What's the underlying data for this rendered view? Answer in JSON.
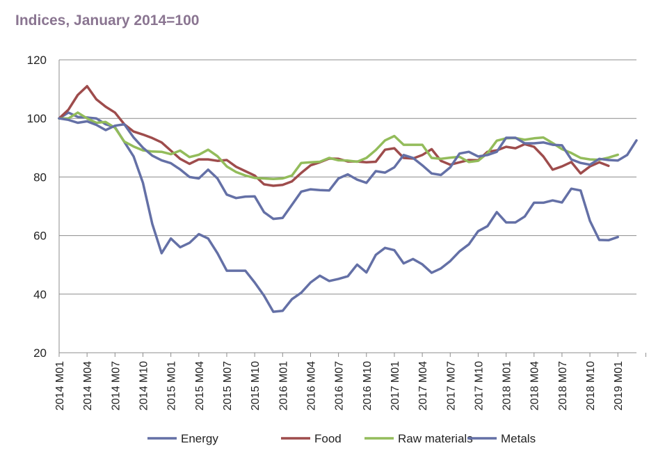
{
  "chart_data": {
    "type": "line",
    "subtitle": "Indices, January 2014=100",
    "xlabel": "",
    "ylabel": "",
    "ylim": [
      20,
      120
    ],
    "yticks": [
      20,
      40,
      60,
      80,
      100,
      120
    ],
    "grid": "horizontal",
    "legend_position": "bottom",
    "x_tick_labels": [
      "2014 M01",
      "2014 M04",
      "2014 M07",
      "2014 M10",
      "2015 M01",
      "2015 M04",
      "2015 M07",
      "2015 M10",
      "2016 M01",
      "2016 M04",
      "2016 M07",
      "2016 M10",
      "2017 M01",
      "2017 M04",
      "2017 M07",
      "2017 M10",
      "2018 M01",
      "2018 M04",
      "2018 M07",
      "2018 M10",
      "2019 M01"
    ],
    "x_start": "2014 M01",
    "frequency": "monthly",
    "series": [
      {
        "name": "Energy",
        "color": "#6470a6",
        "values": [
          100,
          102,
          100.5,
          100.3,
          100,
          98,
          97,
          92,
          87,
          78,
          64,
          54,
          59,
          56,
          57.5,
          60.5,
          59,
          54,
          48,
          48,
          48,
          44,
          39.5,
          34,
          34.3,
          38.3,
          40.5,
          44,
          46.3,
          44.5,
          45.2,
          46.1,
          50.1,
          47.4,
          53.4,
          55.8,
          55,
          50.5,
          52,
          50.2,
          47.3,
          48.8,
          51.3,
          54.6,
          57,
          61.5,
          63.2,
          68,
          64.5,
          64.5,
          66.5,
          71.2,
          71.2,
          72,
          71.3,
          76,
          75.4,
          65,
          58.5,
          58.4,
          59.5
        ]
      },
      {
        "name": "Food",
        "color": "#9e4c4c",
        "values": [
          100,
          103,
          108,
          111,
          106.5,
          104,
          102,
          98,
          95.5,
          94.5,
          93.3,
          91.8,
          89,
          86.2,
          84.5,
          86,
          86,
          85.5,
          85.8,
          83.5,
          82,
          80.5,
          77.5,
          77,
          77.3,
          78.5,
          81.4,
          84,
          85,
          86.3,
          86.2,
          85.3,
          85.3,
          85,
          85.2,
          89.3,
          89.8,
          86.5,
          86.3,
          87.5,
          89.5,
          85.5,
          84.2,
          85,
          85.8,
          85.7,
          88.6,
          89.1,
          90.3,
          89.8,
          91.2,
          90.3,
          87,
          82.5,
          83.6,
          85.1,
          81.2,
          83.6,
          85,
          83.8
        ]
      },
      {
        "name": "Raw materials",
        "color": "#93bc5b",
        "values": [
          100,
          100,
          102,
          100,
          98.5,
          98.8,
          96.8,
          92.1,
          90.4,
          89.1,
          88.7,
          88.6,
          87.8,
          89,
          86.8,
          87.6,
          89.3,
          87.1,
          83.6,
          81.7,
          80.5,
          79.7,
          79.5,
          79.3,
          79.5,
          80.5,
          84.8,
          85,
          85.2,
          86.5,
          85.7,
          85.6,
          85.2,
          86.5,
          89.2,
          92.5,
          94,
          91,
          91,
          91,
          86.5,
          86.2,
          86.6,
          86.9,
          85.1,
          85.5,
          88.1,
          92.4,
          93.2,
          93.3,
          92.7,
          93.2,
          93.5,
          91.6,
          89.5,
          88.2,
          86.5,
          86,
          85.9,
          86.6,
          87.6
        ]
      },
      {
        "name": "Metals",
        "color": "#6470a6",
        "values": [
          100,
          99.5,
          98.5,
          99,
          97.8,
          96,
          97.5,
          98,
          93.5,
          90,
          87.3,
          85.7,
          84.7,
          82.6,
          80,
          79.5,
          82.5,
          79.5,
          74,
          72.8,
          73.3,
          73.4,
          68,
          65.7,
          66,
          70.5,
          75,
          75.8,
          75.5,
          75.4,
          79.5,
          80.9,
          79.1,
          78,
          82,
          81.5,
          83.3,
          87.5,
          86.5,
          84,
          81.2,
          80.7,
          83.3,
          88,
          88.6,
          87,
          87.5,
          88.6,
          93.4,
          93.4,
          91.5,
          91.5,
          91.8,
          91,
          90.8,
          86,
          84.8,
          84.2,
          86.2,
          85.8,
          85.6,
          87.5,
          92.5
        ]
      }
    ]
  }
}
